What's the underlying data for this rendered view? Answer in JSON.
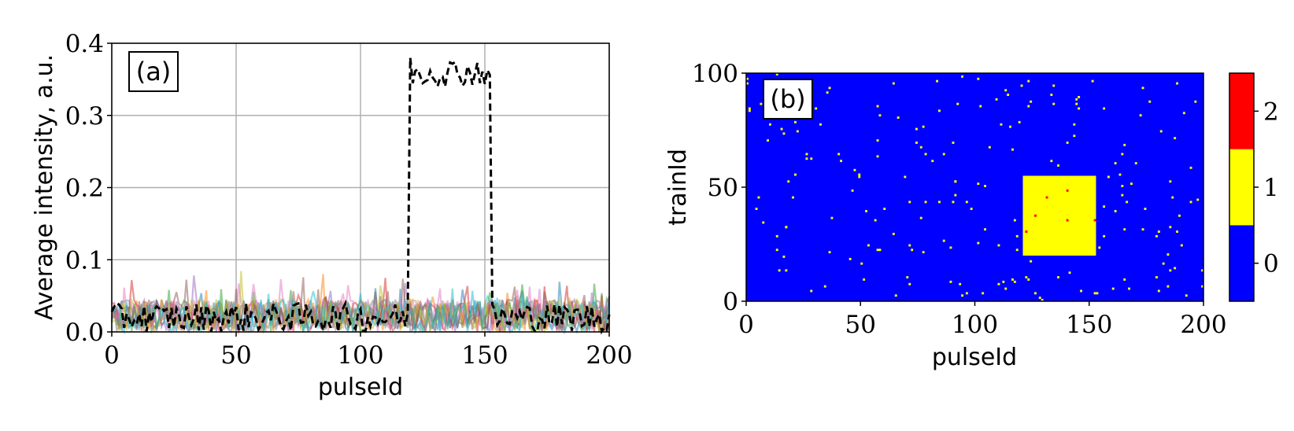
{
  "chart_data": [
    {
      "type": "line",
      "panel_label": "(a)",
      "xlabel": "pulseId",
      "ylabel": "Average intensity, a.u.",
      "xlim": [
        0,
        200
      ],
      "ylim": [
        0,
        0.4
      ],
      "xticks": [
        0,
        50,
        100,
        150,
        200
      ],
      "xtick_labels": [
        "0",
        "50",
        "100",
        "150",
        "200"
      ],
      "yticks": [
        0,
        0.1,
        0.2,
        0.3,
        0.4
      ],
      "ytick_labels": [
        "0.0",
        "0.1",
        "0.2",
        "0.3",
        "0.4"
      ],
      "grid": true,
      "background_series": {
        "description": "many semi-transparent noisy traces at 0.0-0.09",
        "count": 10,
        "colors": [
          "#1f77b4",
          "#ff7f0e",
          "#2ca02c",
          "#d62728",
          "#9467bd",
          "#8c564b",
          "#e377c2",
          "#7f7f7f",
          "#bcbd22",
          "#17becf"
        ],
        "range": [
          0,
          0.09
        ]
      },
      "highlighted_series": {
        "style": "black dashed",
        "baseline_range": [
          0.0,
          0.04
        ],
        "plateau_start": 120,
        "plateau_end": 152,
        "plateau_range": [
          0.34,
          0.38
        ]
      }
    },
    {
      "type": "heatmap",
      "panel_label": "(b)",
      "xlabel": "pulseId",
      "ylabel": "trainId",
      "xlim": [
        0,
        200
      ],
      "ylim": [
        0,
        100
      ],
      "xticks": [
        0,
        50,
        100,
        150,
        200
      ],
      "xtick_labels": [
        "0",
        "50",
        "100",
        "150",
        "200"
      ],
      "yticks": [
        0,
        50,
        100
      ],
      "ytick_labels": [
        "0",
        "50",
        "100"
      ],
      "colormap": [
        "#0000ff",
        "#ffff00",
        "#ff0000"
      ],
      "colorbar_ticks": [
        "0",
        "1",
        "2"
      ],
      "background_value": 0,
      "block": {
        "x": [
          121,
          153
        ],
        "y": [
          20,
          55
        ],
        "value": 1
      },
      "scattered_value_1_count": 210,
      "value_2_points": [
        [
          122,
          30
        ],
        [
          126,
          37
        ],
        [
          131,
          45
        ],
        [
          140,
          48
        ],
        [
          140,
          35
        ],
        [
          152,
          35
        ]
      ]
    }
  ]
}
